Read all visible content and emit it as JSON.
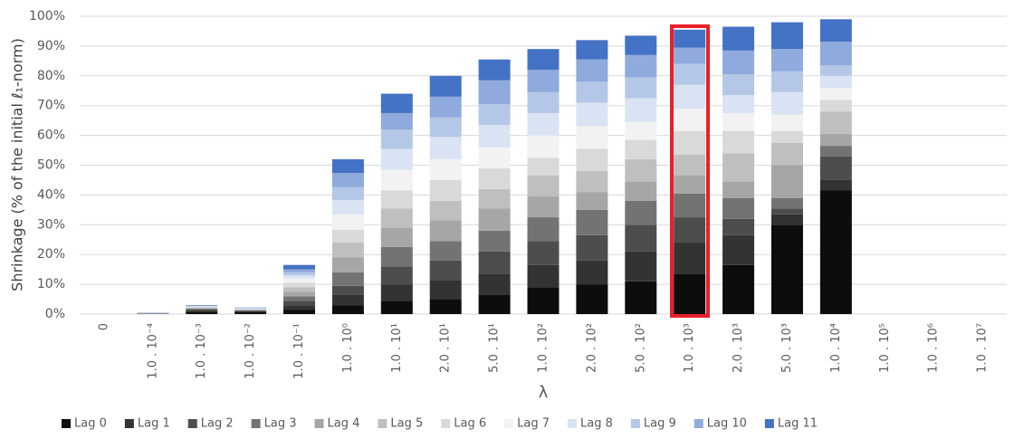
{
  "chart_data": {
    "type": "stacked_bar",
    "y_label": "Shrinkage (% of the initial ℓ₁-norm)",
    "x_label": "λ",
    "categories": [
      "0",
      "1.0 . 10⁻⁴",
      "1.0 . 10⁻³",
      "1.0 . 10⁻²",
      "1.0 . 10⁻¹",
      "1.0 . 10⁰",
      "1.0 . 10¹",
      "2.0 . 10¹",
      "5.0 . 10¹",
      "1.0 . 10²",
      "2.0 . 10²",
      "5.0 . 10²",
      "1.0 . 10³",
      "2.0 . 10³",
      "5.0 . 10³",
      "1.0 . 10⁴",
      "1.0 . 10⁵",
      "1.0 . 10⁶",
      "1.0 . 10⁷"
    ],
    "ylim": [
      0,
      100
    ],
    "yticks": [
      {
        "value": 0,
        "label": "0%"
      },
      {
        "value": 10,
        "label": "10%"
      },
      {
        "value": 20,
        "label": "20%"
      },
      {
        "value": 30,
        "label": "30%"
      },
      {
        "value": 40,
        "label": "40%"
      },
      {
        "value": 50,
        "label": "50%"
      },
      {
        "value": 60,
        "label": "60%"
      },
      {
        "value": 70,
        "label": "70%"
      },
      {
        "value": 80,
        "label": "80%"
      },
      {
        "value": 90,
        "label": "90%"
      },
      {
        "value": 100,
        "label": "100%"
      }
    ],
    "grid": true,
    "legend": "bottom",
    "series": [
      {
        "name": "Lag 0",
        "color": "#0d0d0d",
        "values": [
          0,
          0.05,
          0.8,
          0.6,
          1.5,
          3,
          4.5,
          5,
          6.5,
          9,
          10,
          11,
          13.5,
          16.5,
          30,
          41.5,
          0,
          0,
          0
        ]
      },
      {
        "name": "Lag 1",
        "color": "#333333",
        "values": [
          0,
          0.05,
          0.4,
          0.3,
          1.5,
          3.4,
          5.5,
          6.5,
          7,
          7.5,
          8,
          10,
          10.5,
          10,
          3.5,
          3.5,
          0,
          0,
          0
        ]
      },
      {
        "name": "Lag 2",
        "color": "#4d4d4d",
        "values": [
          0,
          0.05,
          0.3,
          0.2,
          1.5,
          3.1,
          6,
          6.5,
          7.5,
          8,
          8.5,
          9,
          8.5,
          5.5,
          2,
          8,
          0,
          0,
          0
        ]
      },
      {
        "name": "Lag 3",
        "color": "#737373",
        "values": [
          0,
          0.05,
          0.3,
          0.2,
          1.5,
          4.5,
          6.5,
          6.5,
          7,
          8,
          8.5,
          8,
          8,
          7,
          3.5,
          3.5,
          0,
          0,
          0
        ]
      },
      {
        "name": "Lag 4",
        "color": "#a6a6a6",
        "values": [
          0,
          0.05,
          0.2,
          0.2,
          1.5,
          5,
          6.5,
          7,
          7.5,
          7,
          6,
          6.5,
          6,
          5.5,
          11,
          4,
          0,
          0,
          0
        ]
      },
      {
        "name": "Lag 5",
        "color": "#bfbfbf",
        "values": [
          0,
          0.05,
          0.2,
          0.1,
          1.5,
          5,
          6.5,
          6.5,
          6.5,
          7,
          7,
          7.5,
          7,
          9.5,
          7.5,
          7.5,
          0,
          0,
          0
        ]
      },
      {
        "name": "Lag 6",
        "color": "#d9d9d9",
        "values": [
          0,
          0.05,
          0.2,
          0.1,
          1.5,
          4.3,
          6,
          7,
          7,
          6,
          7.5,
          6.5,
          8,
          7.5,
          4,
          4,
          0,
          0,
          0
        ]
      },
      {
        "name": "Lag 7",
        "color": "#f2f2f2",
        "values": [
          0,
          0.05,
          0.1,
          0.1,
          1.5,
          5.2,
          7,
          7,
          7,
          7.5,
          7.5,
          6,
          7.5,
          6,
          5.5,
          4,
          0,
          0,
          0
        ]
      },
      {
        "name": "Lag 8",
        "color": "#dae3f3",
        "values": [
          0,
          0.05,
          0.1,
          0.1,
          1,
          4.8,
          7,
          7.5,
          7.5,
          7.5,
          8,
          8,
          8,
          6,
          7.5,
          4,
          0,
          0,
          0
        ]
      },
      {
        "name": "Lag 9",
        "color": "#b4c7e7",
        "values": [
          0,
          0.05,
          0.1,
          0.1,
          1,
          4.3,
          6.5,
          6.5,
          7,
          7,
          7,
          7,
          7,
          7,
          7,
          3.5,
          0,
          0,
          0
        ]
      },
      {
        "name": "Lag 10",
        "color": "#8faadc",
        "values": [
          0,
          0.05,
          0.1,
          0.1,
          1,
          4.8,
          5.5,
          7,
          8,
          7.5,
          7.5,
          7.5,
          5.5,
          8,
          7.5,
          8,
          0,
          0,
          0
        ]
      },
      {
        "name": "Lag 11",
        "color": "#4472c4",
        "values": [
          0,
          0.05,
          0.2,
          0.1,
          1.5,
          4.6,
          6.5,
          7,
          7,
          7,
          6.5,
          6.5,
          6,
          8,
          9,
          7.5,
          0,
          0,
          0
        ]
      }
    ]
  }
}
